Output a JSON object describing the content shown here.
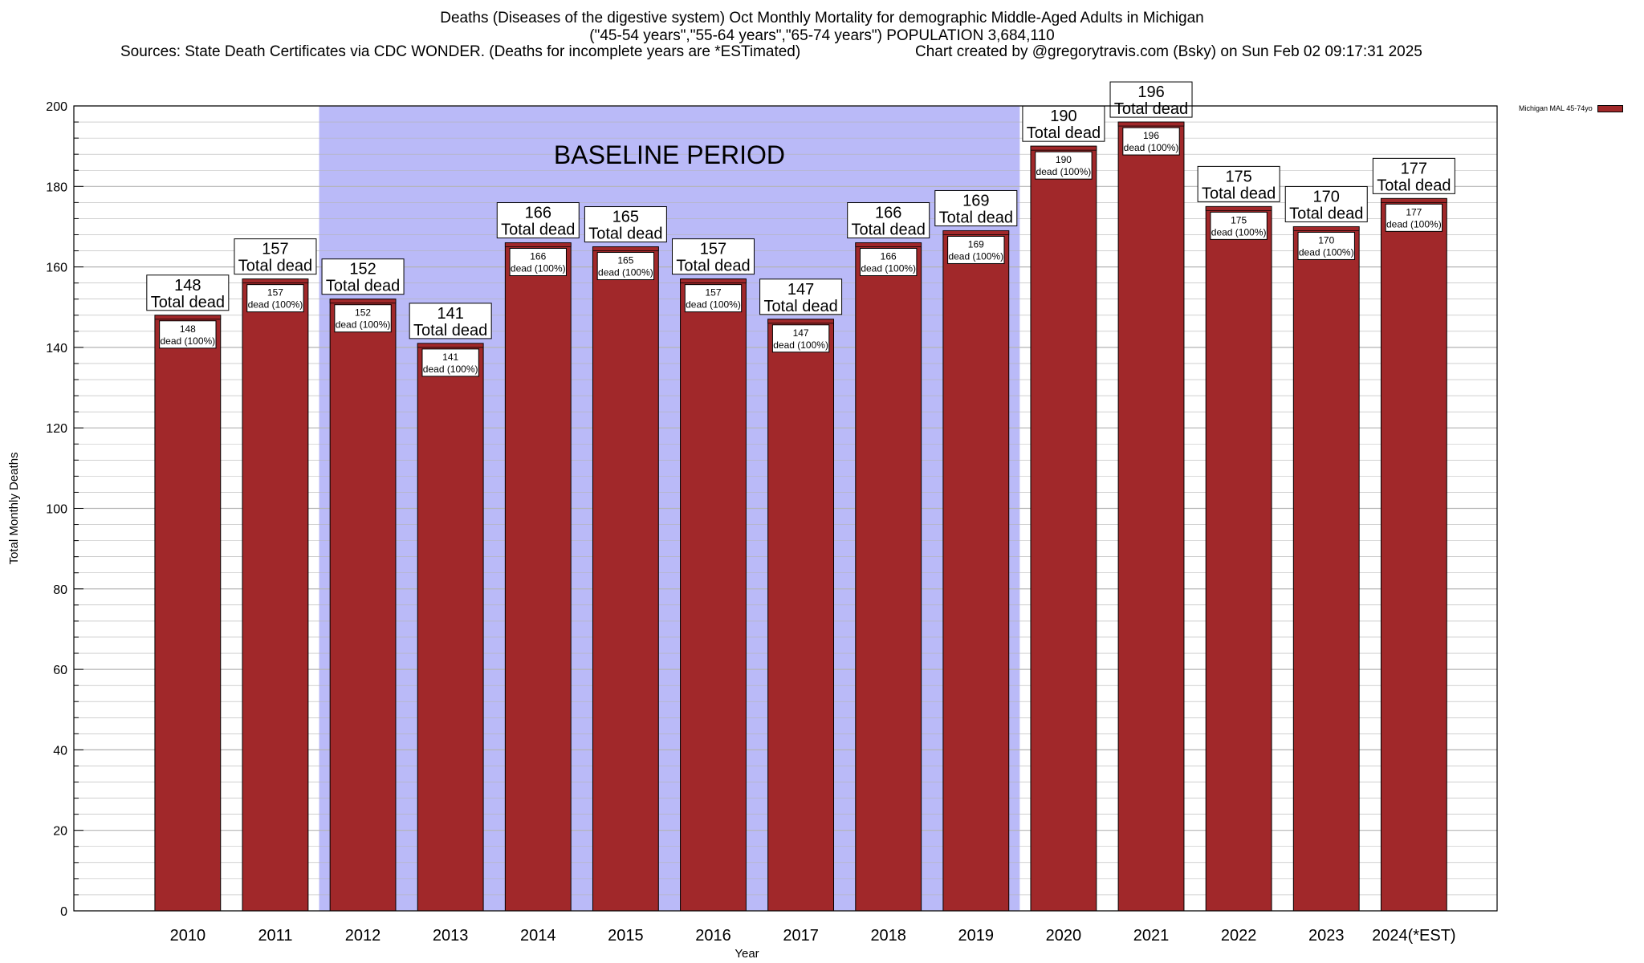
{
  "title": {
    "line1": "Deaths (Diseases of the digestive system) Oct Monthly Mortality for demographic Middle-Aged Adults in Michigan",
    "line2": "(\"45-54 years\",\"55-64 years\",\"65-74 years\") POPULATION 3,684,110",
    "sources": "Sources: State Death Certificates via CDC WONDER. (Deaths for incomplete years are *ESTimated)",
    "credit": "Chart created by @gregorytravis.com (Bsky) on Sun Feb 02 09:17:31 2025"
  },
  "legend": {
    "label": "Michigan MAL 45-74yo"
  },
  "colors": {
    "bar": "#a1282a",
    "baseline": "#babaf8",
    "grid": "#b4b4b4"
  },
  "chart_data": {
    "type": "bar",
    "title": "Deaths (Diseases of the digestive system) Oct Monthly Mortality for demographic Middle-Aged Adults in Michigan",
    "xlabel": "Year",
    "ylabel": "Total Monthly Deaths",
    "ylim": [
      0,
      200
    ],
    "yticks": [
      0,
      20,
      40,
      60,
      80,
      100,
      120,
      140,
      160,
      180,
      200
    ],
    "categories": [
      "2010",
      "2011",
      "2012",
      "2013",
      "2014",
      "2015",
      "2016",
      "2017",
      "2018",
      "2019",
      "2020",
      "2021",
      "2022",
      "2023",
      "2024(*EST)"
    ],
    "values": [
      148,
      157,
      152,
      141,
      166,
      165,
      157,
      147,
      166,
      169,
      190,
      196,
      175,
      170,
      177
    ],
    "total_label": "Total dead",
    "inner_label": "dead (100%)",
    "baseline": {
      "label": "BASELINE PERIOD",
      "from": "2012",
      "to": "2019"
    },
    "series": [
      {
        "name": "Michigan MAL 45-74yo",
        "values": [
          148,
          157,
          152,
          141,
          166,
          165,
          157,
          147,
          166,
          169,
          190,
          196,
          175,
          170,
          177
        ]
      }
    ]
  }
}
